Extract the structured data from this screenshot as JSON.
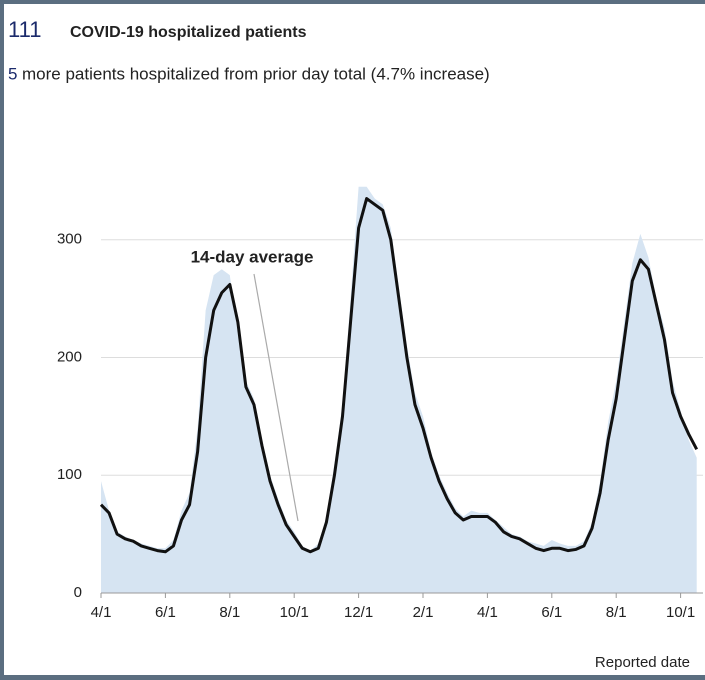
{
  "header": {
    "count": "111",
    "title": "COVID-19 hospitalized patients",
    "change": "5",
    "change_text": "more patients hospitalized from prior day total (4.7% increase)"
  },
  "chart_data": {
    "type": "line",
    "xlabel": "Reported date",
    "categories": [
      "4/1",
      null,
      null,
      null,
      null,
      null,
      null,
      null,
      "6/1",
      null,
      null,
      null,
      null,
      null,
      null,
      null,
      "8/1",
      null,
      null,
      null,
      null,
      null,
      null,
      null,
      "10/1",
      null,
      null,
      null,
      null,
      null,
      null,
      null,
      "12/1",
      null,
      null,
      null,
      null,
      null,
      null,
      null,
      "2/1",
      null,
      null,
      null,
      null,
      null,
      null,
      null,
      "4/1",
      null,
      null,
      null,
      null,
      null,
      null,
      null,
      "6/1",
      null,
      null,
      null,
      null,
      null,
      null,
      null,
      "8/1",
      null,
      null,
      null,
      null,
      null,
      null,
      null,
      "10/1",
      null,
      null
    ],
    "series": [
      {
        "type": "area",
        "color": "#d6e4f2",
        "values": [
          95,
          70,
          52,
          48,
          45,
          42,
          40,
          38,
          38,
          45,
          70,
          85,
          140,
          240,
          270,
          275,
          270,
          220,
          180,
          165,
          130,
          100,
          80,
          62,
          52,
          40,
          36,
          42,
          65,
          110,
          160,
          250,
          345,
          345,
          335,
          330,
          310,
          260,
          210,
          170,
          150,
          120,
          100,
          85,
          72,
          65,
          70,
          68,
          68,
          62,
          56,
          50,
          48,
          44,
          42,
          40,
          45,
          42,
          40,
          40,
          44,
          60,
          95,
          145,
          180,
          230,
          280,
          305,
          285,
          250,
          225,
          180,
          155,
          130,
          115
        ]
      },
      {
        "name": "14-day average",
        "type": "line",
        "color": "#111111",
        "values": [
          75,
          68,
          50,
          46,
          44,
          40,
          38,
          36,
          35,
          40,
          62,
          75,
          120,
          200,
          240,
          255,
          262,
          230,
          175,
          160,
          125,
          95,
          75,
          58,
          48,
          38,
          35,
          38,
          60,
          100,
          150,
          230,
          310,
          335,
          330,
          325,
          300,
          250,
          200,
          160,
          140,
          115,
          95,
          80,
          68,
          62,
          65,
          65,
          65,
          60,
          52,
          48,
          46,
          42,
          38,
          36,
          38,
          38,
          36,
          37,
          40,
          55,
          85,
          130,
          165,
          215,
          265,
          283,
          275,
          245,
          215,
          170,
          150,
          135,
          122
        ]
      }
    ],
    "annotation_series": 1,
    "ylim": [
      0,
      400
    ],
    "yticks": [
      0,
      100,
      200,
      300
    ],
    "grid": true
  }
}
